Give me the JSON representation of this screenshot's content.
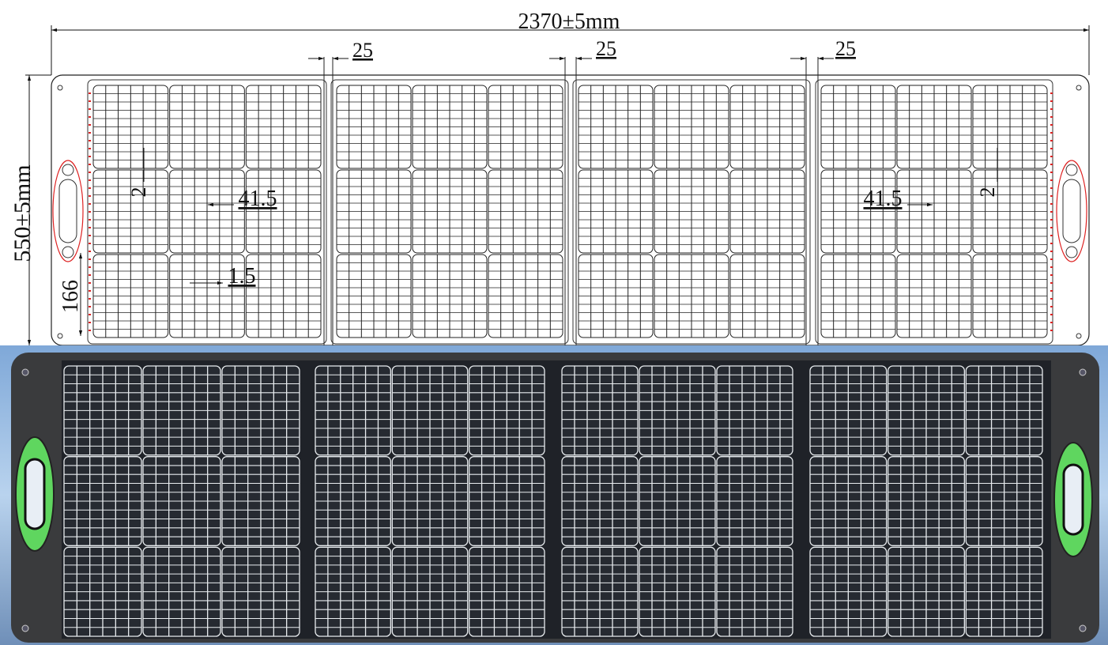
{
  "dimensions": {
    "total_width": "2370±5mm",
    "total_height": "550±5mm",
    "panel_gaps": [
      "25",
      "25",
      "25"
    ],
    "left_detail": {
      "strip_gap": "2",
      "cell_width": "41.5",
      "cell_gap": "1.5",
      "section_height": "166"
    },
    "right_detail": {
      "cell_width": "41.5",
      "strip_gap": "2"
    }
  }
}
